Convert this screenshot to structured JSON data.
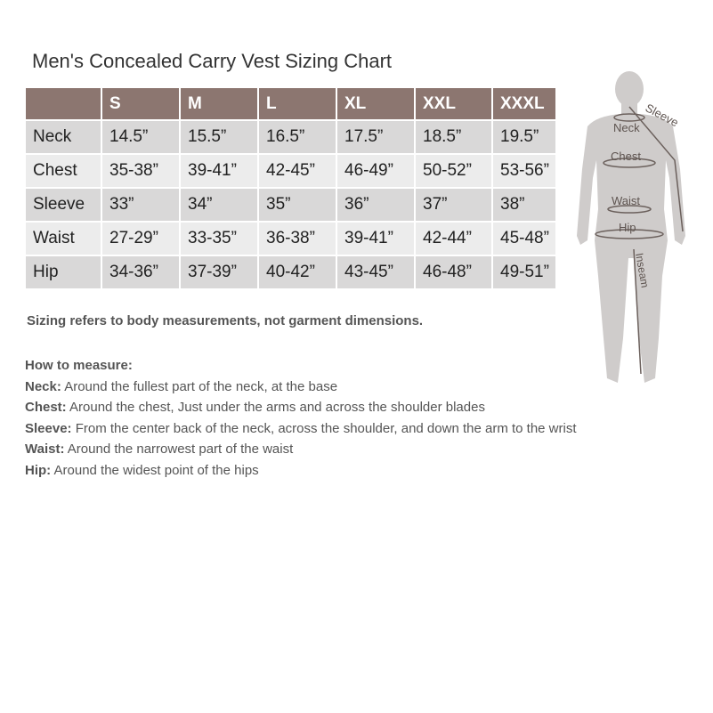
{
  "title": "Men's Concealed Carry Vest Sizing Chart",
  "table": {
    "columns": [
      "",
      "S",
      "M",
      "L",
      "XL",
      "XXL",
      "XXXL"
    ],
    "rows": [
      [
        "Neck",
        "14.5”",
        "15.5”",
        "16.5”",
        "17.5”",
        "18.5”",
        "19.5”"
      ],
      [
        "Chest",
        "35-38”",
        "39-41”",
        "42-45”",
        "46-49”",
        "50-52”",
        "53-56”"
      ],
      [
        "Sleeve",
        "33”",
        "34”",
        "35”",
        "36”",
        "37”",
        "38”"
      ],
      [
        "Waist",
        "27-29”",
        "33-35”",
        "36-38”",
        "39-41”",
        "42-44”",
        "45-48”"
      ],
      [
        "Hip",
        "34-36”",
        "37-39”",
        "40-42”",
        "43-45”",
        "46-48”",
        "49-51”"
      ]
    ]
  },
  "note": "Sizing refers to body measurements, not garment dimensions.",
  "how_to": {
    "heading": "How to measure:",
    "items": [
      {
        "label": "Neck:",
        "text": " Around the fullest part of the neck, at the base"
      },
      {
        "label": "Chest:",
        "text": " Around the chest, Just under the arms and across the shoulder blades"
      },
      {
        "label": "Sleeve:",
        "text": " From the center back of the neck, across the shoulder, and down the arm to the wrist"
      },
      {
        "label": "Waist:",
        "text": " Around the narrowest part of the waist"
      },
      {
        "label": "Hip:",
        "text": " Around the widest point of the hips"
      }
    ]
  },
  "figure": {
    "labels": [
      "Sleeve",
      "Neck",
      "Chest",
      "Waist",
      "Hip",
      "Inseam"
    ]
  },
  "colors": {
    "header": "#8c7670",
    "row_dark": "#d9d8d8",
    "row_light": "#ececec",
    "silhouette": "#cfcccb"
  }
}
